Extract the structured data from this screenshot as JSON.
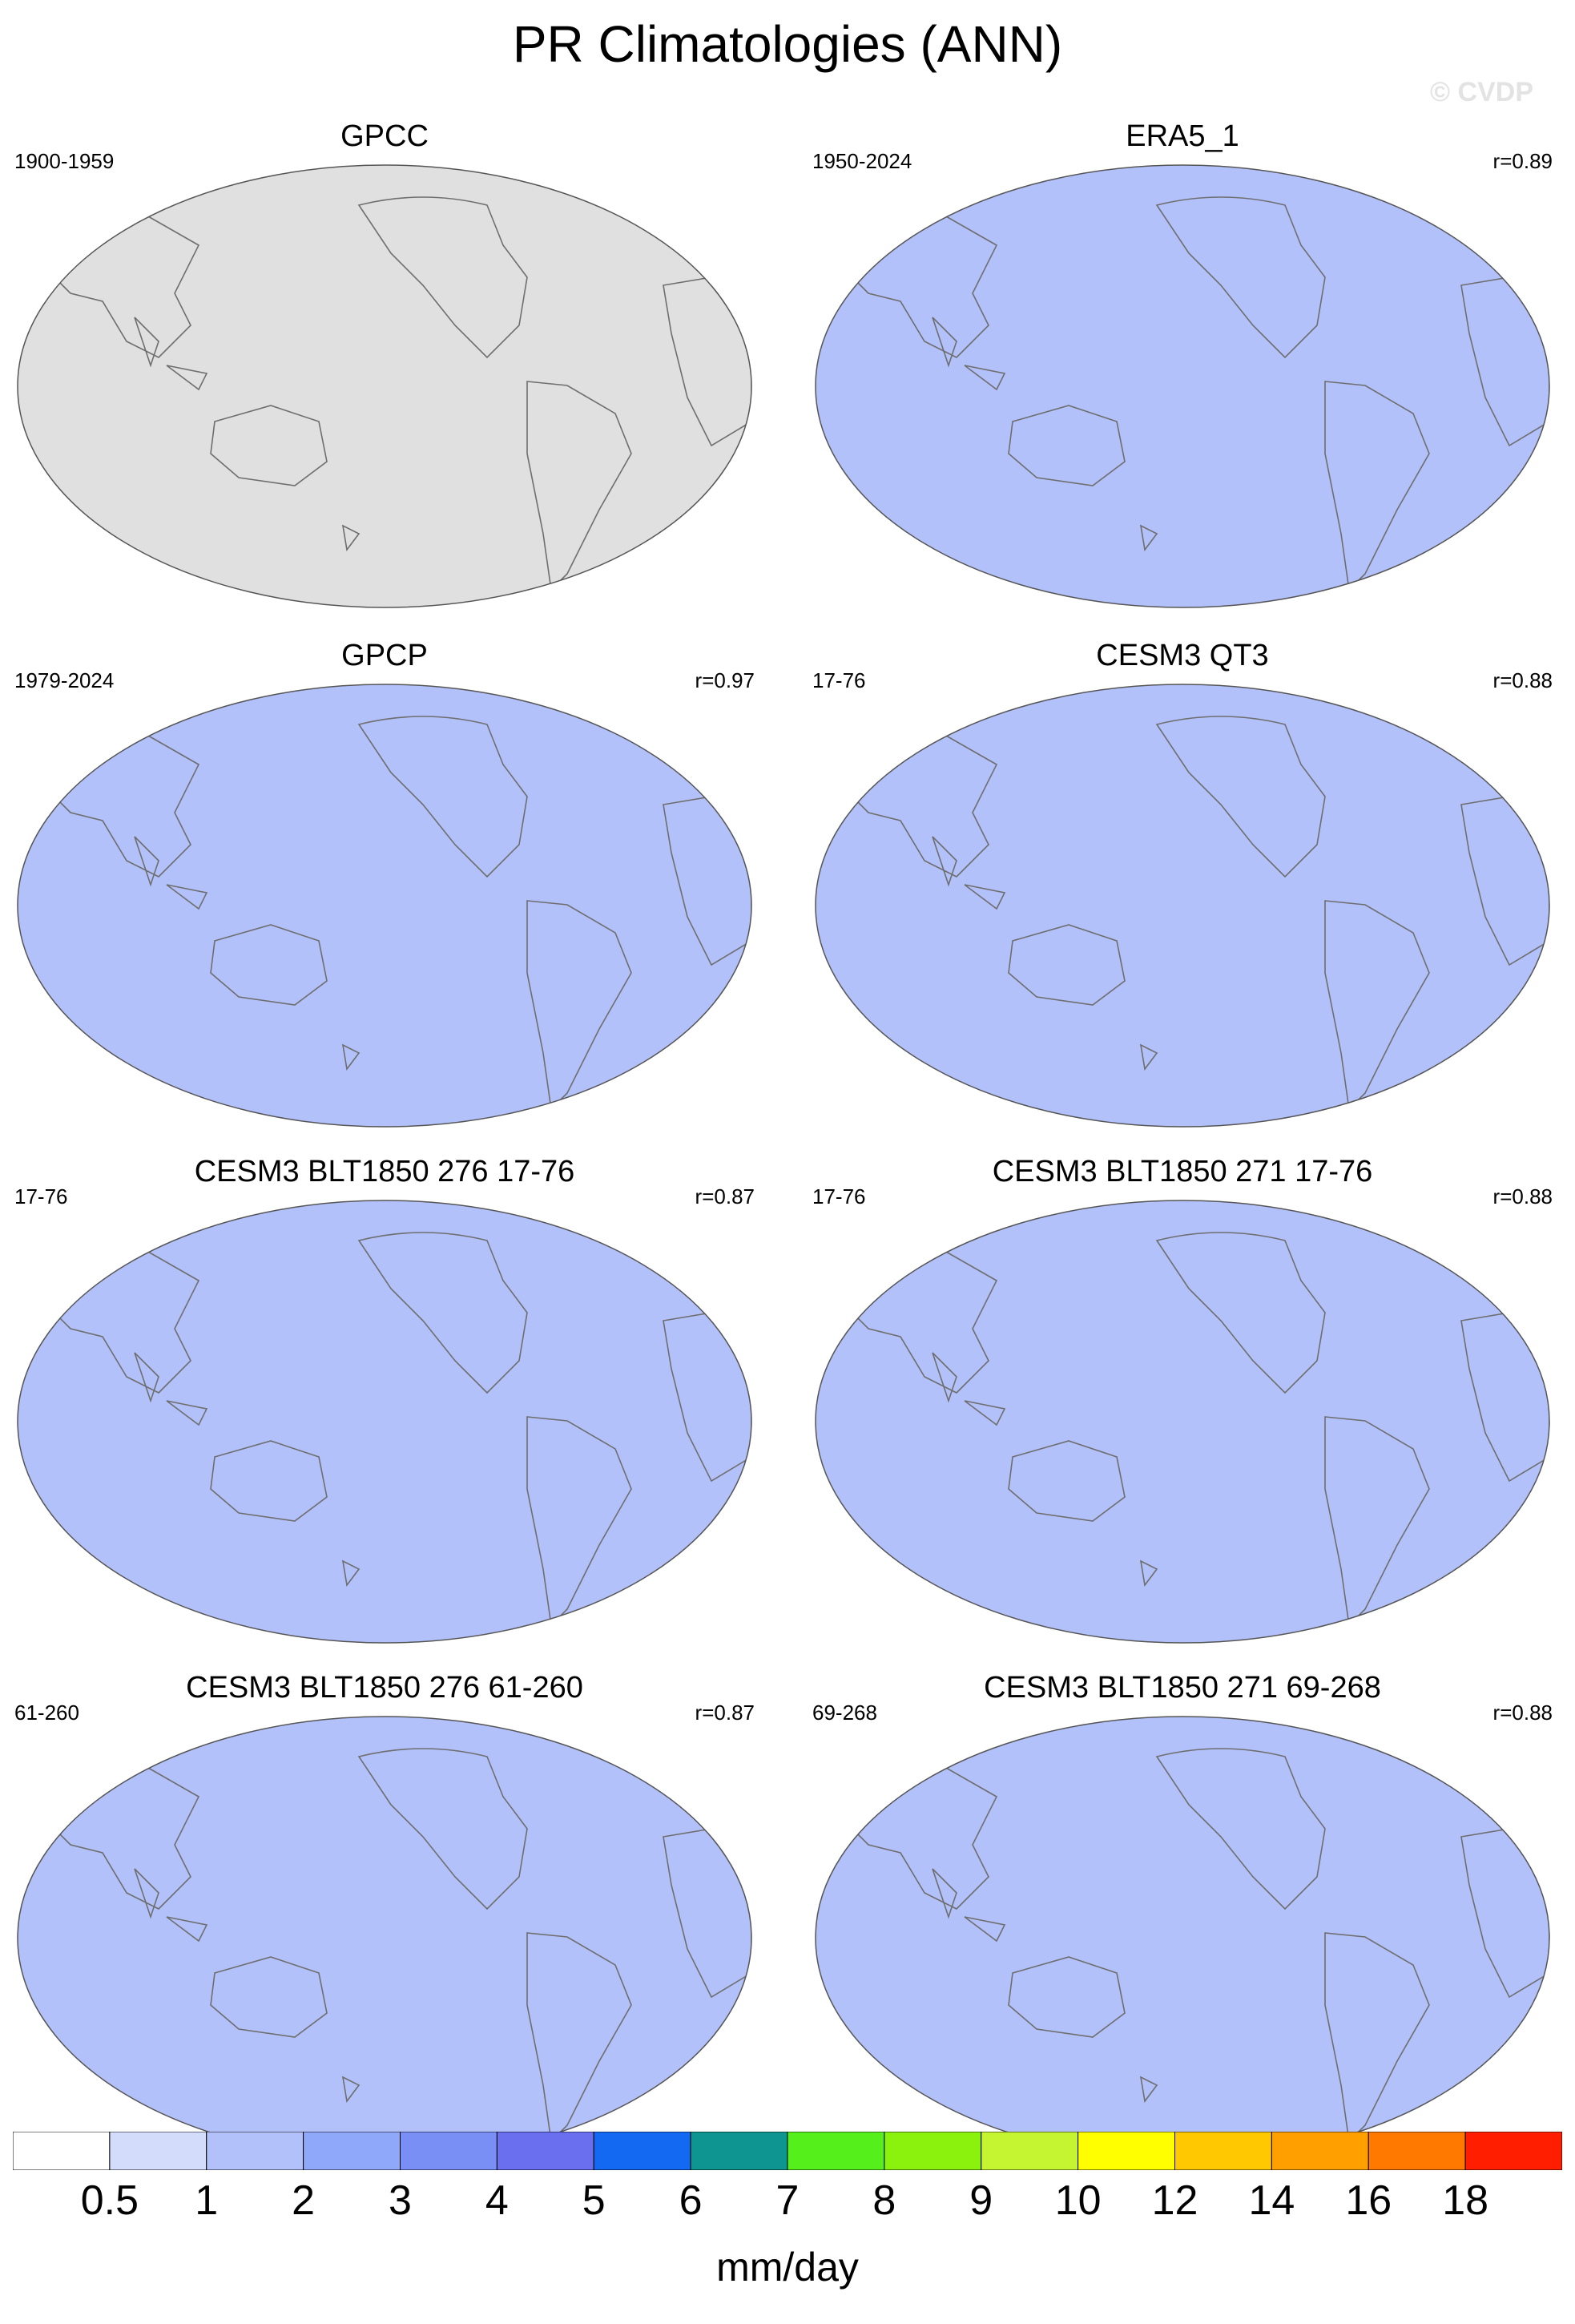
{
  "title": "PR Climatologies (ANN)",
  "watermark": "© CVDP",
  "panels": [
    {
      "title": "GPCC",
      "period": "1900-1959",
      "corr": "",
      "kind": "obs_land"
    },
    {
      "title": "ERA5_1",
      "period": "1950-2024",
      "corr": "r=0.89",
      "kind": "reanalysis"
    },
    {
      "title": "GPCP",
      "period": "1979-2024",
      "corr": "r=0.97",
      "kind": "satellite"
    },
    {
      "title": "CESM3 QT3",
      "period": "17-76",
      "corr": "r=0.88",
      "kind": "model"
    },
    {
      "title": "CESM3 BLT1850 276 17-76",
      "period": "17-76",
      "corr": "r=0.87",
      "kind": "model"
    },
    {
      "title": "CESM3 BLT1850 271 17-76",
      "period": "17-76",
      "corr": "r=0.88",
      "kind": "model"
    },
    {
      "title": "CESM3 BLT1850 276 61-260",
      "period": "61-260",
      "corr": "r=0.87",
      "kind": "model"
    },
    {
      "title": "CESM3 BLT1850 271 69-268",
      "period": "69-268",
      "corr": "r=0.88",
      "kind": "model"
    }
  ],
  "colorbar": {
    "units": "mm/day",
    "labels": [
      "0.5",
      "1",
      "2",
      "3",
      "4",
      "5",
      "6",
      "7",
      "8",
      "9",
      "10",
      "12",
      "14",
      "16",
      "18"
    ],
    "colors": [
      "#ffffff",
      "#d4dcfb",
      "#b3c1fa",
      "#90a8fa",
      "#7a8ff5",
      "#6a6ff0",
      "#1469f3",
      "#0e9591",
      "#55f01b",
      "#8af20c",
      "#c5f530",
      "#ffff00",
      "#ffc800",
      "#ffa000",
      "#ff7800",
      "#ff1e00"
    ]
  },
  "colors": {
    "missing": "#e0e0e0",
    "coastline": "#6e6e6e"
  }
}
